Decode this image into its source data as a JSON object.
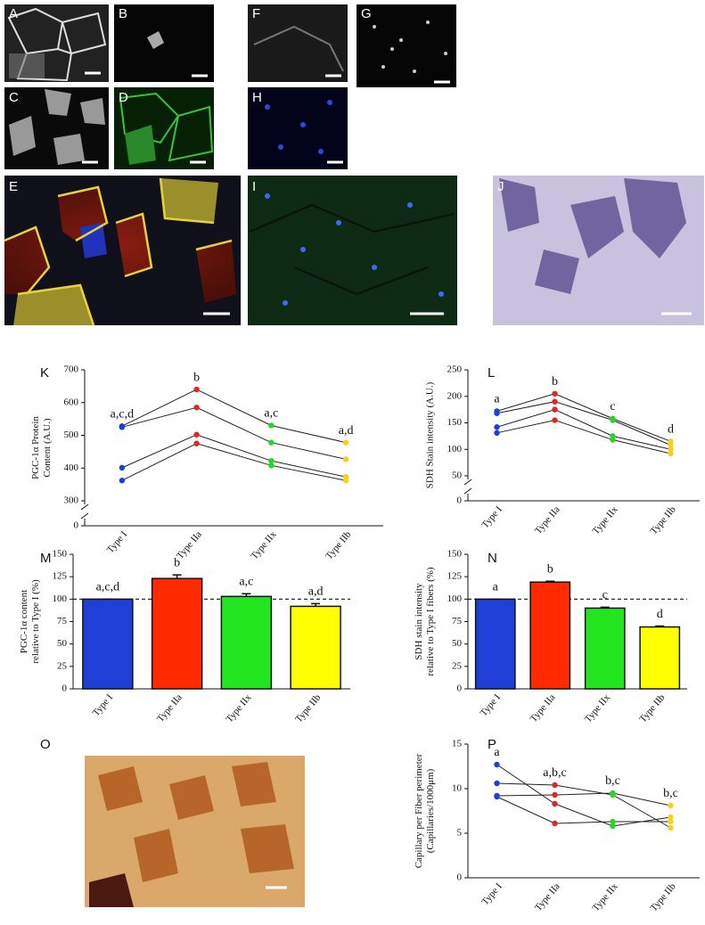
{
  "panel_labels": [
    "A",
    "B",
    "C",
    "D",
    "E",
    "F",
    "G",
    "H",
    "I",
    "J",
    "O"
  ],
  "chart_data": [
    {
      "type": "line",
      "panel_label": "K",
      "ylabel": [
        "PGC-1α Protein",
        "Content (A.U.)"
      ],
      "categories": [
        "Type I",
        "Type IIa",
        "Type IIx",
        "Type IIb"
      ],
      "colors": [
        "#1f3fd6",
        "#e0281e",
        "#2fd12f",
        "#f2d21e"
      ],
      "series": [
        {
          "values": [
            528,
            640,
            530,
            478
          ]
        },
        {
          "values": [
            525,
            585,
            478,
            427
          ]
        },
        {
          "values": [
            401,
            502,
            422,
            373
          ]
        },
        {
          "values": [
            362,
            475,
            408,
            362
          ]
        }
      ],
      "letters": [
        "a,c,d",
        "b",
        "a,c",
        "a,d"
      ],
      "ylim": [
        0,
        700
      ],
      "y_break": [
        0,
        300
      ],
      "yticks": [
        0,
        300,
        400,
        500,
        600,
        700
      ]
    },
    {
      "type": "line",
      "panel_label": "L",
      "ylabel": [
        "SDH Stain intensity (A.U.)"
      ],
      "categories": [
        "Type I",
        "Type IIa",
        "Type IIx",
        "Type IIb"
      ],
      "colors": [
        "#1f3fd6",
        "#e0281e",
        "#2fd12f",
        "#f2d21e"
      ],
      "series": [
        {
          "values": [
            172,
            205,
            158,
            115
          ]
        },
        {
          "values": [
            168,
            190,
            155,
            108
          ]
        },
        {
          "values": [
            142,
            175,
            125,
            100
          ]
        },
        {
          "values": [
            131,
            155,
            118,
            92
          ]
        }
      ],
      "letters": [
        "a",
        "b",
        "c",
        "d"
      ],
      "ylim": [
        0,
        250
      ],
      "y_break": [
        0,
        50
      ],
      "yticks": [
        0,
        50,
        100,
        150,
        200,
        250
      ]
    },
    {
      "type": "bar",
      "panel_label": "M",
      "ylabel": [
        "PGC-1α  content",
        "relative to Type I (%)"
      ],
      "categories": [
        "Type I",
        "Type IIa",
        "Type IIx",
        "Type IIb"
      ],
      "colors": [
        "#1f3fd6",
        "#ff2a00",
        "#22e51f",
        "#ffff00"
      ],
      "values": [
        100,
        123,
        103,
        92
      ],
      "errors": [
        0,
        4,
        3,
        3
      ],
      "letters": [
        "a,c,d",
        "b",
        "a,c",
        "a,d"
      ],
      "ref_line": 100,
      "ylim": [
        0,
        150
      ],
      "yticks": [
        0,
        25,
        50,
        75,
        100,
        125,
        150
      ]
    },
    {
      "type": "bar",
      "panel_label": "N",
      "ylabel": [
        "SDH stain intensity",
        "relative to Type I fibers (%)"
      ],
      "categories": [
        "Type I",
        "Type IIa",
        "Type IIx",
        "Type IIb"
      ],
      "colors": [
        "#1f3fd6",
        "#ff2a00",
        "#22e51f",
        "#ffff00"
      ],
      "values": [
        100,
        119,
        90,
        69
      ],
      "errors": [
        0,
        1,
        1,
        1
      ],
      "letters": [
        "a",
        "b",
        "c",
        "d"
      ],
      "ref_line": 100,
      "ylim": [
        0,
        150
      ],
      "yticks": [
        0,
        25,
        50,
        75,
        100,
        125,
        150
      ]
    },
    {
      "type": "line",
      "panel_label": "P",
      "ylabel": [
        "Capillary per Fiber perimeter",
        "(Capillaries/1000μm)"
      ],
      "categories": [
        "Type I",
        "Type IIa",
        "Type IIx",
        "Type IIb"
      ],
      "colors": [
        "#1f3fd6",
        "#e0281e",
        "#2fd12f",
        "#f2d21e"
      ],
      "series": [
        {
          "values": [
            12.7,
            8.3,
            5.8,
            6.8
          ]
        },
        {
          "values": [
            10.6,
            10.4,
            9.3,
            5.6
          ]
        },
        {
          "values": [
            9.2,
            9.3,
            9.5,
            8.1
          ]
        },
        {
          "values": [
            9.1,
            6.1,
            6.3,
            6.3
          ]
        }
      ],
      "letters": [
        "a",
        "a,b,c",
        "b,c",
        "b,c"
      ],
      "ylim": [
        0,
        15
      ],
      "yticks": [
        0,
        5,
        10,
        15
      ]
    }
  ]
}
